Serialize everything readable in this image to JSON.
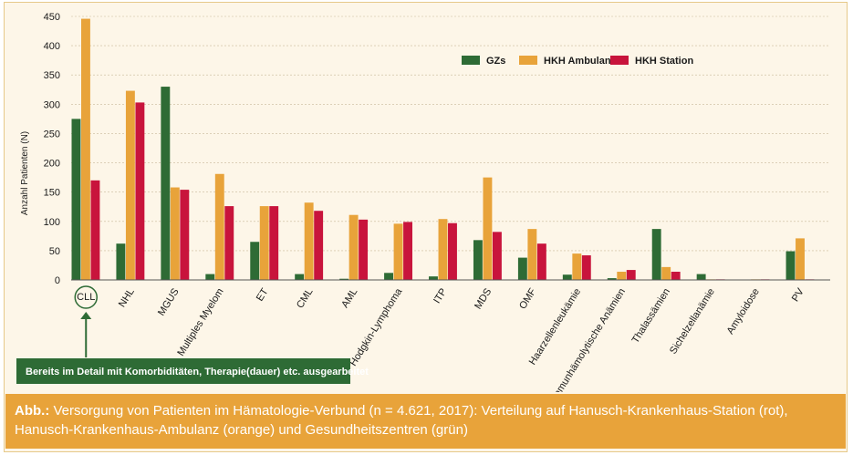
{
  "chart_data": {
    "type": "bar",
    "ylabel": "Anzahl Patienten (N)",
    "ylim": [
      0,
      450
    ],
    "yticks": [
      0,
      50,
      100,
      150,
      200,
      250,
      300,
      350,
      400,
      450
    ],
    "categories": [
      "CLL",
      "NHL",
      "MGUS",
      "Multiples Myelom",
      "ET",
      "CML",
      "AML",
      "Hodgkin-Lymphoma",
      "ITP",
      "MDS",
      "OMF",
      "Haarzellenleukämie",
      "Autoimmunhämolytische Anämien",
      "Thalassämien",
      "Sichelzellanämie",
      "Amyloidose",
      "PV"
    ],
    "series": [
      {
        "name": "GZs",
        "color": "#2e6b35",
        "values": [
          275,
          62,
          330,
          10,
          65,
          10,
          2,
          12,
          6,
          68,
          38,
          9,
          3,
          87,
          10,
          0,
          49
        ]
      },
      {
        "name": "HKH Ambulanz",
        "color": "#e8a33a",
        "values": [
          446,
          323,
          158,
          181,
          126,
          132,
          111,
          96,
          104,
          175,
          87,
          45,
          14,
          22,
          1,
          1,
          71
        ]
      },
      {
        "name": "HKH Station",
        "color": "#c8143c",
        "values": [
          170,
          303,
          154,
          126,
          126,
          118,
          103,
          99,
          97,
          82,
          62,
          42,
          17,
          14,
          1,
          1,
          1
        ]
      }
    ],
    "legend_position": "top-right",
    "highlighted_category": "CLL",
    "annotation": "Bereits im Detail mit Komorbiditäten, Therapie(dauer) etc. ausgearbeitet"
  },
  "caption": {
    "prefix": "Abb.:",
    "text": " Versorgung von Patienten im Hämatologie-Verbund (n = 4.621, 2017): Verteilung auf Hanusch-Krankenhaus-Station (rot), Hanusch-Krankenhaus-Ambulanz (orange) und Gesundheitszentren (grün)"
  },
  "colors": {
    "background": "#fdf6e8",
    "caption_bg": "#e8a33a",
    "annotation_bg": "#2e6b35",
    "grid": "#c9b99a"
  }
}
